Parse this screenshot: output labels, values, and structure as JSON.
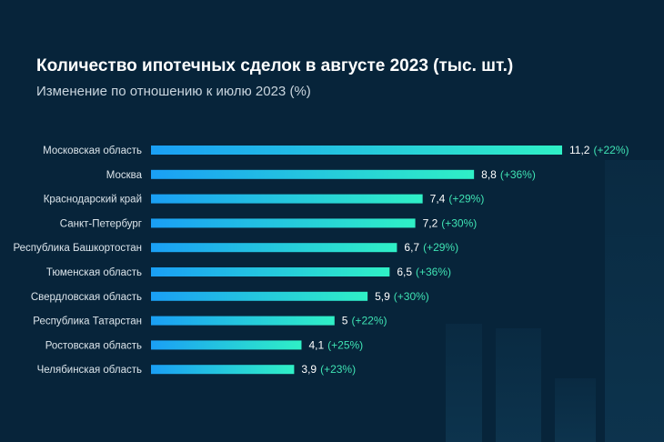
{
  "chart_data": {
    "type": "bar",
    "orientation": "horizontal",
    "title": "Количество ипотечных сделок в августе 2023 (тыс. шт.)",
    "subtitle": "Изменение по отношению к июлю 2023 (%)",
    "categories": [
      "Московская область",
      "Москва",
      "Краснодарский край",
      "Санкт-Петербург",
      "Республика Башкортостан",
      "Тюменская область",
      "Свердловская область",
      "Республика Татарстан",
      "Ростовская область",
      "Челябинская область"
    ],
    "values": [
      11.2,
      8.8,
      7.4,
      7.2,
      6.7,
      6.5,
      5.9,
      5,
      4.1,
      3.9
    ],
    "value_labels": [
      "11,2",
      "8,8",
      "7,4",
      "7,2",
      "6,7",
      "6,5",
      "5,9",
      "5",
      "4,1",
      "3,9"
    ],
    "change_labels": [
      "(+22%)",
      "(+36%)",
      "(+29%)",
      "(+30%)",
      "(+29%)",
      "(+36%)",
      "(+30%)",
      "(+22%)",
      "(+25%)",
      "(+23%)"
    ],
    "xlim": [
      0,
      11.2
    ],
    "grid": false,
    "legend": "none",
    "colors": {
      "background": "#07243a",
      "bar_start": "#1a9ff5",
      "bar_end": "#2ff0c6",
      "change_text": "#3fe3b4"
    }
  }
}
